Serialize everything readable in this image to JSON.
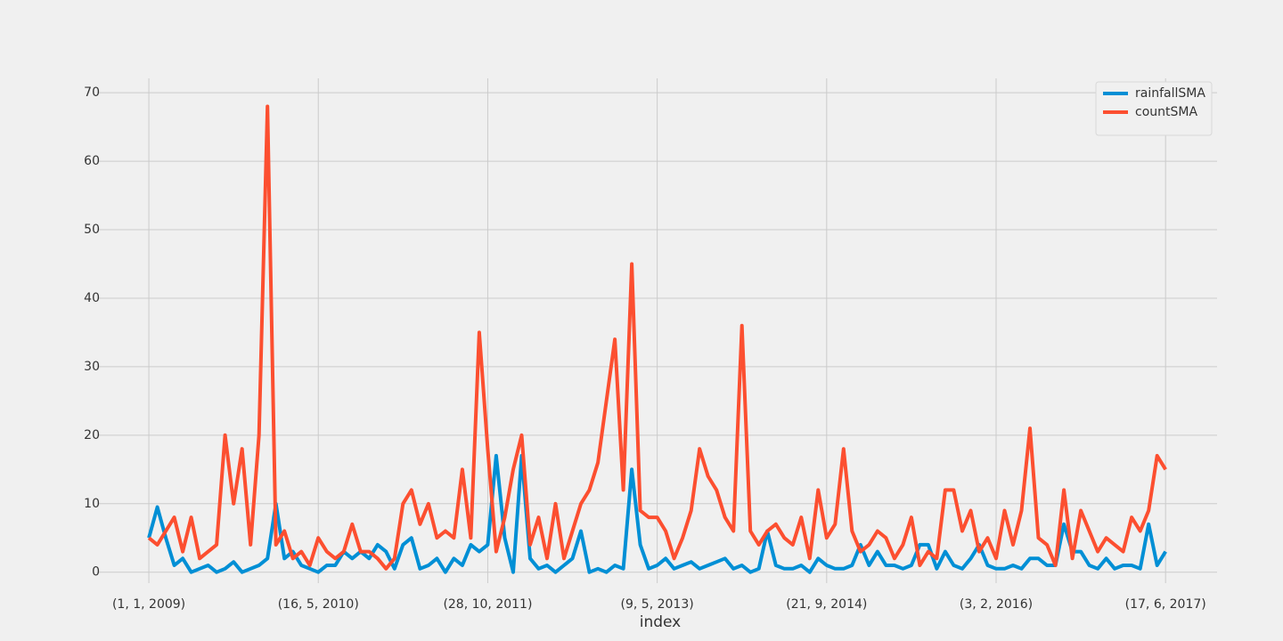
{
  "chart_data": {
    "type": "line",
    "x_label": "index",
    "x": [
      0,
      25,
      50,
      75,
      100,
      125,
      150,
      175,
      200,
      225,
      250,
      275,
      300,
      325,
      350,
      375,
      400,
      425,
      450,
      475,
      500,
      525,
      550,
      575,
      600,
      625,
      650,
      675,
      700,
      725,
      750,
      775,
      800,
      825,
      850,
      875,
      900,
      925,
      950,
      975,
      1000,
      1025,
      1050,
      1075,
      1100,
      1125,
      1150,
      1175,
      1200,
      1225,
      1250,
      1275,
      1300,
      1325,
      1350,
      1375,
      1400,
      1425,
      1450,
      1475,
      1500,
      1525,
      1550,
      1575,
      1600,
      1625,
      1650,
      1675,
      1700,
      1725,
      1750,
      1775,
      1800,
      1825,
      1850,
      1875,
      1900,
      1925,
      1950,
      1975,
      2000,
      2025,
      2050,
      2075,
      2100,
      2125,
      2150,
      2175,
      2200,
      2225,
      2250,
      2275,
      2300,
      2325,
      2350,
      2375,
      2400,
      2425,
      2450,
      2475,
      2500,
      2525,
      2550,
      2575,
      2600,
      2625,
      2650,
      2675,
      2700,
      2725,
      2750,
      2775,
      2800,
      2825,
      2850,
      2875,
      2900,
      2925,
      2950,
      2975,
      3000
    ],
    "series": [
      {
        "name": "rainfallSMA",
        "color": "#008fd5",
        "values": [
          5,
          9.5,
          5,
          1,
          2,
          0,
          0.5,
          1,
          0,
          0.5,
          1.5,
          0,
          0.5,
          1,
          2,
          10,
          2,
          3,
          1,
          0.5,
          0,
          1,
          1,
          3,
          2,
          3,
          2,
          4,
          3,
          0.5,
          4,
          5,
          0.5,
          1,
          2,
          0,
          2,
          1,
          4,
          3,
          4,
          17,
          5,
          0,
          17,
          2,
          0.5,
          1,
          0,
          1,
          2,
          6,
          0,
          0.5,
          0,
          1,
          0.5,
          15,
          4,
          0.5,
          1,
          2,
          0.5,
          1,
          1.5,
          0.5,
          1,
          1.5,
          2,
          0.5,
          1,
          0,
          0.5,
          6,
          1,
          0.5,
          0.5,
          1,
          0,
          2,
          1,
          0.5,
          0.5,
          1,
          4,
          1,
          3,
          1,
          1,
          0.5,
          1,
          4,
          4,
          0.5,
          3,
          1,
          0.5,
          2,
          4,
          1,
          0.5,
          0.5,
          1,
          0.5,
          2,
          2,
          1,
          1,
          7,
          3,
          3,
          1,
          0.5,
          2,
          0.5,
          1,
          1,
          0.5,
          7,
          1,
          3
        ]
      },
      {
        "name": "countSMA",
        "color": "#fc4f30",
        "values": [
          5,
          4,
          6,
          8,
          3,
          8,
          2,
          3,
          4,
          20,
          10,
          18,
          4,
          20,
          68,
          4,
          6,
          2,
          3,
          1,
          5,
          3,
          2,
          3,
          7,
          3,
          3,
          2,
          0.5,
          2,
          10,
          12,
          7,
          10,
          5,
          6,
          5,
          15,
          5,
          35,
          18,
          3,
          8,
          15,
          20,
          4,
          8,
          2,
          10,
          2,
          6,
          10,
          12,
          16,
          25,
          34,
          12,
          45,
          9,
          8,
          8,
          6,
          2,
          5,
          9,
          18,
          14,
          12,
          8,
          6,
          36,
          6,
          4,
          6,
          7,
          5,
          4,
          8,
          2,
          12,
          5,
          7,
          18,
          6,
          3,
          4,
          6,
          5,
          2,
          4,
          8,
          1,
          3,
          2,
          12,
          12,
          6,
          9,
          3,
          5,
          2,
          9,
          4,
          9,
          21,
          5,
          4,
          1,
          12,
          2,
          9,
          6,
          3,
          5,
          4,
          3,
          8,
          6,
          9,
          17,
          15
        ]
      }
    ],
    "xlim": [
      -150,
      3152
    ],
    "xticks": [
      {
        "value": 0,
        "label": "(1, 1, 2009)"
      },
      {
        "value": 500,
        "label": "(16, 5, 2010)"
      },
      {
        "value": 1000,
        "label": "(28, 10, 2011)"
      },
      {
        "value": 1500,
        "label": "(9, 5, 2013)"
      },
      {
        "value": 2000,
        "label": "(21, 9, 2014)"
      },
      {
        "value": 2500,
        "label": "(3, 2, 2016)"
      },
      {
        "value": 3000,
        "label": "(17, 6, 2017)"
      }
    ],
    "ylim": [
      -1.6,
      72.1
    ],
    "yticks": [
      0,
      10,
      20,
      30,
      40,
      50,
      60,
      70
    ],
    "grid": true,
    "legend": "upper right"
  }
}
